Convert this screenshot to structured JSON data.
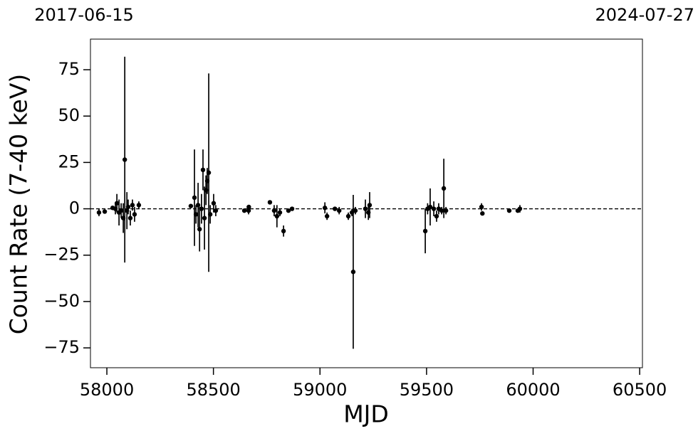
{
  "chart_data": {
    "type": "errorbar",
    "xlabel": "MJD",
    "ylabel": "Count Rate (7-40 keV)",
    "xlim": [
      57923,
      60513
    ],
    "ylim": [
      -85.7,
      91.5
    ],
    "xticks": [
      58000,
      58500,
      59000,
      59500,
      60000,
      60500
    ],
    "yticks": [
      {
        "value": -75,
        "label": "−75"
      },
      {
        "value": -50,
        "label": "−50"
      },
      {
        "value": -25,
        "label": "−25"
      },
      0,
      25,
      50,
      75
    ],
    "x2ticks": [
      {
        "value": 57923,
        "label": "2017-06-15"
      },
      {
        "value": 60513,
        "label": "2024-07-27"
      }
    ],
    "hline": 0,
    "grid": false,
    "series": [
      {
        "color": "#000000",
        "x": [
          57963,
          57990,
          58027,
          58040,
          58047,
          58057,
          58067,
          58077,
          58084,
          58094,
          58100,
          58110,
          58120,
          58130,
          58150,
          58394,
          58411,
          58418,
          58428,
          58435,
          58444,
          58451,
          58458,
          58465,
          58471,
          58478,
          58485,
          58501,
          58511,
          58645,
          58665,
          58666,
          58765,
          58785,
          58798,
          58812,
          58829,
          58852,
          58869,
          59023,
          59033,
          59070,
          59090,
          59133,
          59150,
          59156,
          59166,
          59213,
          59227,
          59233,
          59494,
          59505,
          59517,
          59534,
          59547,
          59557,
          59571,
          59581,
          59591,
          59758,
          59762,
          59888,
          59928,
          59938
        ],
        "values": [
          -2,
          -1.5,
          0.5,
          0,
          3,
          -2,
          -1,
          -5,
          26.5,
          -1,
          1,
          -5,
          2,
          -3,
          2,
          1.5,
          6,
          -3,
          2,
          -11,
          0,
          21,
          -5,
          10,
          15,
          19.5,
          -3,
          3,
          -1,
          -1,
          -1,
          1,
          3.5,
          -1,
          -4,
          -2,
          -12,
          -1,
          0,
          0.5,
          -4,
          0,
          -1,
          -4,
          -2,
          -34,
          -1,
          0,
          -2,
          2,
          -12,
          0,
          1,
          0,
          -4,
          0,
          -1,
          11,
          -1,
          1,
          -2.5,
          -1,
          -1,
          0
        ],
        "errors": [
          2,
          1,
          1,
          3,
          5,
          7,
          4,
          8,
          55.5,
          10,
          4,
          4,
          3,
          4,
          2,
          1,
          26,
          5,
          12,
          12,
          8,
          11,
          17,
          8,
          7,
          53.5,
          5,
          5,
          3,
          1,
          2,
          1,
          1,
          3,
          6,
          2,
          3,
          1,
          1,
          3,
          2,
          1,
          2,
          2,
          2,
          41.5,
          2,
          5,
          4,
          7,
          12,
          3,
          10,
          4,
          3,
          3,
          2,
          16,
          2,
          2,
          1,
          1,
          1,
          2
        ]
      }
    ]
  }
}
